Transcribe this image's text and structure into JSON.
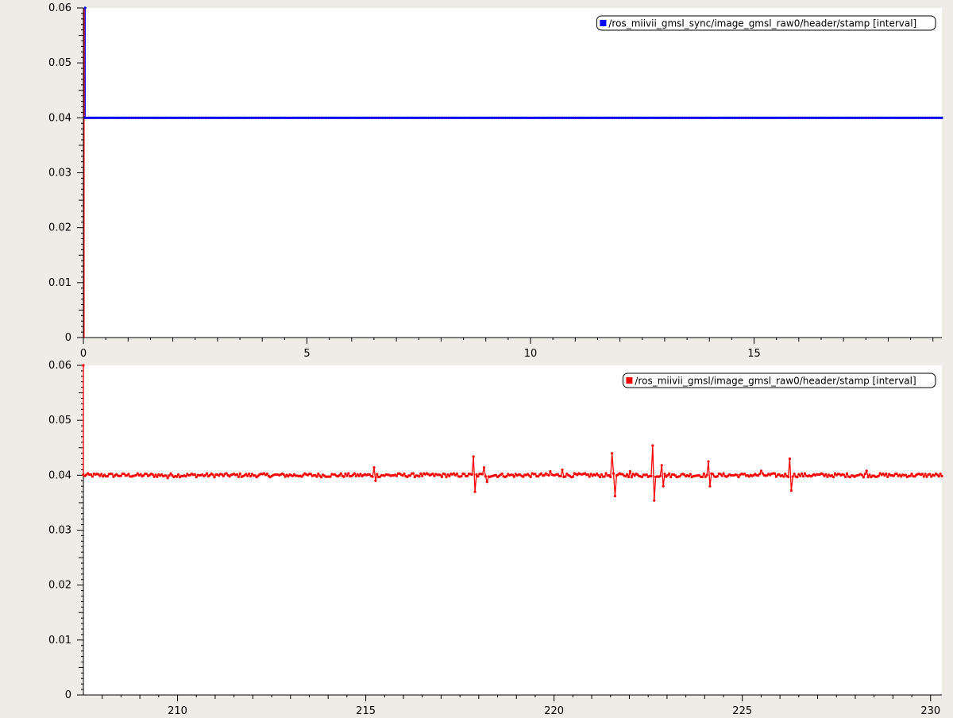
{
  "colors": {
    "background": "#efebe7",
    "plot_background": "#ffffff",
    "axis": "#000000",
    "series_top": "#0000ff",
    "series_bottom": "#ff0000"
  },
  "chart_data": [
    {
      "type": "line",
      "grid": false,
      "legend_position": "top-right",
      "xlim": [
        0,
        19.2
      ],
      "ylim": [
        0,
        0.06
      ],
      "x_ticks": [
        0,
        5,
        10,
        15
      ],
      "y_ticks": [
        0,
        0.01,
        0.02,
        0.03,
        0.04,
        0.05,
        0.06
      ],
      "x_tick_labels": [
        "0",
        "5",
        "10",
        "15"
      ],
      "y_tick_labels": [
        "0",
        "0.01",
        "0.02",
        "0.03",
        "0.04",
        "0.05",
        "0.06"
      ],
      "series": [
        {
          "name": "/ros_miivii_gmsl_sync/image_gmsl_raw0/header/stamp [interval]",
          "color": "#0000ff",
          "x_start": 0.04,
          "x_end": 19.2,
          "x_step": 0.04,
          "value": 0.04,
          "initial_spike": 0.06
        }
      ],
      "annotations": [
        {
          "type": "vertical-line",
          "x": 0.0,
          "color": "#ff0000"
        }
      ]
    },
    {
      "type": "line",
      "grid": false,
      "legend_position": "top-right",
      "xlim": [
        207.5,
        230.3
      ],
      "ylim": [
        0,
        0.06
      ],
      "x_ticks": [
        210,
        215,
        220,
        225,
        230
      ],
      "y_ticks": [
        0,
        0.01,
        0.02,
        0.03,
        0.04,
        0.05,
        0.06
      ],
      "x_tick_labels": [
        "210",
        "215",
        "220",
        "225",
        "230"
      ],
      "y_tick_labels": [
        "0",
        "0.01",
        "0.02",
        "0.03",
        "0.04",
        "0.05",
        "0.06"
      ],
      "series": [
        {
          "name": "/ros_miivii_gmsl/image_gmsl_raw0/header/stamp [interval]",
          "color": "#ff0000",
          "x_start": 207.5,
          "x_end": 230.3,
          "x_step": 0.04,
          "value": 0.04,
          "initial_spike": 0.06,
          "spikes": [
            {
              "x": 209.72,
              "y": 0.0395
            },
            {
              "x": 215.22,
              "y": 0.0414
            },
            {
              "x": 215.26,
              "y": 0.039
            },
            {
              "x": 217.85,
              "y": 0.0434
            },
            {
              "x": 217.9,
              "y": 0.037
            },
            {
              "x": 218.15,
              "y": 0.0414
            },
            {
              "x": 218.22,
              "y": 0.0388
            },
            {
              "x": 219.9,
              "y": 0.0407
            },
            {
              "x": 220.2,
              "y": 0.041
            },
            {
              "x": 221.55,
              "y": 0.044
            },
            {
              "x": 221.6,
              "y": 0.0362
            },
            {
              "x": 222.0,
              "y": 0.0407
            },
            {
              "x": 222.62,
              "y": 0.0454
            },
            {
              "x": 222.67,
              "y": 0.0354
            },
            {
              "x": 222.85,
              "y": 0.0418
            },
            {
              "x": 222.9,
              "y": 0.038
            },
            {
              "x": 224.1,
              "y": 0.0425
            },
            {
              "x": 224.15,
              "y": 0.038
            },
            {
              "x": 225.5,
              "y": 0.0408
            },
            {
              "x": 226.25,
              "y": 0.043
            },
            {
              "x": 226.3,
              "y": 0.0372
            },
            {
              "x": 228.3,
              "y": 0.0408
            }
          ]
        }
      ],
      "annotations": []
    }
  ]
}
